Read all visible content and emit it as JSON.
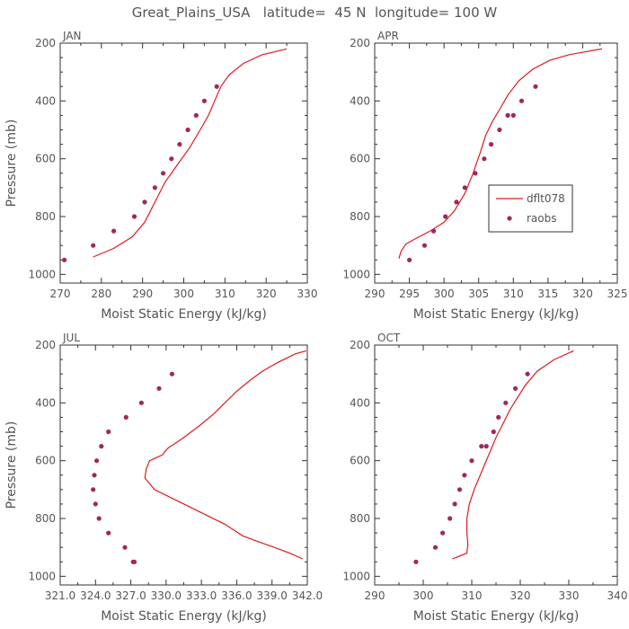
{
  "title": "Great_Plains_USA   latitude=  45 N  longitude= 100 W",
  "colors": {
    "model": "#e0191f",
    "obs": "#a0285a",
    "axis": "#333333",
    "text": "#555555"
  },
  "legend": {
    "model": "dflt078",
    "obs": "raobs"
  },
  "chart_data": [
    {
      "type": "line",
      "label": "JAN",
      "xlabel": "Moist Static Energy (kJ/kg)",
      "ylabel": "Pressure (mb)",
      "xlim": [
        270,
        330
      ],
      "ylim": [
        1030,
        200
      ],
      "xticks": [
        "270",
        "280",
        "290",
        "300",
        "310",
        "320",
        "330"
      ],
      "yticks": [
        "200",
        "400",
        "600",
        "800",
        "1000"
      ],
      "series": [
        {
          "name": "dflt078",
          "kind": "line",
          "x": [
            278,
            283,
            287.5,
            290.5,
            293,
            295.5,
            298.5,
            301.5,
            304,
            306,
            307.5,
            309,
            311,
            314.5,
            319,
            325
          ],
          "y": [
            940,
            910,
            870,
            820,
            750,
            680,
            620,
            560,
            500,
            450,
            400,
            350,
            310,
            270,
            240,
            220
          ]
        },
        {
          "name": "raobs",
          "kind": "points",
          "x": [
            271,
            278,
            283,
            288,
            290.5,
            293,
            295,
            297,
            299,
            301,
            303,
            305,
            308
          ],
          "y": [
            950,
            900,
            850,
            800,
            750,
            700,
            650,
            600,
            550,
            500,
            450,
            400,
            350
          ]
        }
      ]
    },
    {
      "type": "line",
      "label": "APR",
      "xlabel": "Moist Static Energy (kJ/kg)",
      "ylabel": "",
      "xlim": [
        290,
        325
      ],
      "ylim": [
        1030,
        200
      ],
      "xticks": [
        "290",
        "295",
        "300",
        "305",
        "310",
        "315",
        "320",
        "325"
      ],
      "yticks": [
        "200",
        "400",
        "600",
        "800",
        "1000"
      ],
      "series": [
        {
          "name": "dflt078",
          "kind": "line",
          "x": [
            293.5,
            293.8,
            294.5,
            296,
            298,
            300,
            301.5,
            303,
            304.2,
            305.2,
            306,
            307,
            308,
            309.2,
            310.8,
            312.8,
            315.2,
            318,
            322.8
          ],
          "y": [
            945,
            920,
            895,
            875,
            850,
            820,
            780,
            720,
            650,
            580,
            520,
            470,
            430,
            380,
            330,
            290,
            260,
            240,
            220
          ]
        },
        {
          "name": "raobs",
          "kind": "points",
          "x": [
            295,
            297.2,
            298.5,
            300.2,
            301.8,
            303,
            304.5,
            305.8,
            306.8,
            308,
            309.2,
            310,
            311.2,
            313.2
          ],
          "y": [
            950,
            900,
            850,
            800,
            750,
            700,
            650,
            600,
            550,
            500,
            450,
            450,
            400,
            350
          ]
        }
      ]
    },
    {
      "type": "line",
      "label": "JUL",
      "xlabel": "Moist Static Energy (kJ/kg)",
      "ylabel": "Pressure (mb)",
      "xlim": [
        321.0,
        342.0
      ],
      "ylim": [
        1030,
        200
      ],
      "xticks": [
        "321.0",
        "324.0",
        "327.0",
        "330.0",
        "333.0",
        "336.0",
        "339.0",
        "342.0"
      ],
      "yticks": [
        "200",
        "400",
        "600",
        "800",
        "1000"
      ],
      "series": [
        {
          "name": "dflt078",
          "kind": "line",
          "x": [
            341.9,
            341.0,
            339.5,
            338.2,
            337.2,
            336.0,
            335.0,
            334.0,
            332.8,
            331.5,
            330.6,
            330.2,
            329.9,
            329.7,
            328.6,
            328.3,
            328.2,
            329.0,
            331.0,
            333.0,
            335.0,
            336.5,
            337.8,
            339.2,
            340.5,
            341.6
          ],
          "y": [
            220,
            230,
            260,
            290,
            320,
            360,
            400,
            440,
            480,
            520,
            545,
            555,
            568,
            580,
            600,
            630,
            660,
            700,
            740,
            780,
            820,
            860,
            880,
            900,
            920,
            940
          ]
        },
        {
          "name": "raobs",
          "kind": "points",
          "x": [
            330.5,
            329.4,
            327.9,
            326.6,
            325.1,
            324.5,
            324.1,
            323.9,
            323.8,
            324.0,
            324.3,
            325.1,
            326.5,
            327.3,
            327.2
          ],
          "y": [
            300,
            350,
            400,
            450,
            500,
            550,
            600,
            650,
            700,
            750,
            800,
            850,
            900,
            950,
            950
          ]
        }
      ]
    },
    {
      "type": "line",
      "label": "OCT",
      "xlabel": "Moist Static Energy (kJ/kg)",
      "ylabel": "",
      "xlim": [
        290,
        340
      ],
      "ylim": [
        1030,
        200
      ],
      "xticks": [
        "290",
        "300",
        "310",
        "320",
        "330",
        "340"
      ],
      "yticks": [
        "200",
        "400",
        "600",
        "800",
        "1000"
      ],
      "series": [
        {
          "name": "dflt078",
          "kind": "line",
          "x": [
            306,
            309,
            309.2,
            309,
            309,
            309.5,
            310.5,
            312,
            313.5,
            315,
            316.5,
            318,
            319.5,
            321,
            323.5,
            327,
            331
          ],
          "y": [
            940,
            920,
            890,
            850,
            800,
            750,
            700,
            640,
            580,
            520,
            470,
            420,
            380,
            340,
            290,
            250,
            220
          ]
        },
        {
          "name": "raobs",
          "kind": "points",
          "x": [
            298.5,
            302.5,
            304,
            305.5,
            306.5,
            307.5,
            308.5,
            310,
            312,
            313,
            314.5,
            315.5,
            317,
            319,
            321.5
          ],
          "y": [
            950,
            900,
            850,
            800,
            750,
            700,
            650,
            600,
            550,
            550,
            500,
            450,
            400,
            350,
            300
          ]
        }
      ]
    }
  ]
}
